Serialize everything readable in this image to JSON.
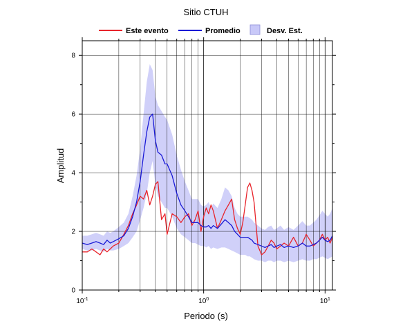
{
  "chart_data": {
    "type": "line",
    "title": "Sitio CTUH",
    "xlabel": "Periodo (s)",
    "ylabel": "Amplitud",
    "x_scale": "log",
    "xlim": [
      0.1,
      11.5
    ],
    "ylim": [
      0,
      8.5
    ],
    "grid": true,
    "legend_position": "top",
    "x_ticks": [
      {
        "value": 0.1,
        "base": "10",
        "exp": "-1"
      },
      {
        "value": 1,
        "base": "10",
        "exp": "0"
      },
      {
        "value": 10,
        "base": "10",
        "exp": "1"
      }
    ],
    "y_ticks": [
      0,
      2,
      4,
      6,
      8
    ],
    "series": [
      {
        "name": "Este evento",
        "color": "#e8242b",
        "style": "line",
        "x": [
          0.1,
          0.11,
          0.12,
          0.13,
          0.14,
          0.15,
          0.16,
          0.17,
          0.18,
          0.2,
          0.22,
          0.24,
          0.26,
          0.28,
          0.3,
          0.32,
          0.34,
          0.36,
          0.38,
          0.4,
          0.42,
          0.45,
          0.48,
          0.5,
          0.55,
          0.6,
          0.65,
          0.7,
          0.75,
          0.8,
          0.85,
          0.9,
          0.95,
          1.0,
          1.05,
          1.1,
          1.15,
          1.2,
          1.3,
          1.4,
          1.5,
          1.6,
          1.7,
          1.8,
          1.9,
          2.0,
          2.1,
          2.2,
          2.3,
          2.4,
          2.5,
          2.6,
          2.8,
          3.0,
          3.2,
          3.4,
          3.6,
          3.8,
          4.0,
          4.3,
          4.6,
          5.0,
          5.5,
          6.0,
          6.5,
          7.0,
          7.5,
          8.0,
          8.5,
          9.0,
          9.5,
          10.0,
          10.5,
          11.0,
          11.5
        ],
        "y": [
          1.3,
          1.3,
          1.4,
          1.3,
          1.2,
          1.4,
          1.3,
          1.4,
          1.5,
          1.6,
          1.9,
          2.2,
          2.6,
          2.9,
          3.2,
          3.1,
          3.4,
          2.9,
          3.2,
          3.6,
          3.7,
          2.4,
          2.6,
          1.9,
          2.6,
          2.5,
          2.3,
          2.5,
          2.6,
          2.2,
          2.4,
          2.7,
          2.0,
          2.5,
          2.8,
          2.6,
          2.9,
          2.7,
          2.1,
          2.4,
          2.7,
          2.9,
          3.1,
          2.4,
          2.1,
          1.9,
          2.3,
          2.9,
          3.5,
          3.65,
          3.4,
          3.0,
          1.5,
          1.2,
          1.3,
          1.5,
          1.7,
          1.6,
          1.4,
          1.5,
          1.6,
          1.5,
          1.8,
          1.5,
          1.6,
          1.9,
          1.7,
          1.5,
          1.6,
          1.7,
          1.9,
          1.7,
          1.8,
          1.6,
          1.8
        ]
      },
      {
        "name": "Promedio",
        "color": "#1a1ad6",
        "style": "line",
        "x": [
          0.1,
          0.11,
          0.12,
          0.13,
          0.14,
          0.15,
          0.16,
          0.17,
          0.18,
          0.2,
          0.22,
          0.24,
          0.26,
          0.28,
          0.3,
          0.32,
          0.34,
          0.36,
          0.38,
          0.4,
          0.42,
          0.45,
          0.48,
          0.5,
          0.55,
          0.6,
          0.65,
          0.7,
          0.75,
          0.8,
          0.85,
          0.9,
          0.95,
          1.0,
          1.05,
          1.1,
          1.15,
          1.2,
          1.3,
          1.4,
          1.5,
          1.6,
          1.7,
          1.8,
          1.9,
          2.0,
          2.1,
          2.2,
          2.3,
          2.4,
          2.5,
          2.6,
          2.8,
          3.0,
          3.2,
          3.4,
          3.6,
          3.8,
          4.0,
          4.3,
          4.6,
          5.0,
          5.5,
          6.0,
          6.5,
          7.0,
          7.5,
          8.0,
          8.5,
          9.0,
          9.5,
          10.0,
          10.5,
          11.0,
          11.5
        ],
        "y": [
          1.6,
          1.55,
          1.6,
          1.65,
          1.6,
          1.55,
          1.7,
          1.6,
          1.65,
          1.75,
          1.85,
          2.1,
          2.5,
          3.0,
          3.7,
          4.6,
          5.4,
          5.9,
          6.0,
          5.1,
          4.7,
          4.6,
          4.3,
          4.3,
          3.9,
          3.3,
          2.9,
          2.7,
          2.5,
          2.3,
          2.3,
          2.3,
          2.2,
          2.15,
          2.15,
          2.2,
          2.1,
          2.2,
          2.1,
          2.25,
          2.4,
          2.3,
          2.2,
          2.0,
          1.9,
          1.8,
          1.8,
          1.8,
          1.8,
          1.75,
          1.7,
          1.6,
          1.55,
          1.5,
          1.45,
          1.5,
          1.55,
          1.45,
          1.5,
          1.55,
          1.45,
          1.5,
          1.45,
          1.5,
          1.6,
          1.5,
          1.5,
          1.55,
          1.6,
          1.7,
          1.8,
          1.7,
          1.65,
          1.7,
          1.85
        ]
      },
      {
        "name": "Desv. Est.",
        "color": "#c8c8f8",
        "style": "band",
        "x": [
          0.1,
          0.11,
          0.12,
          0.13,
          0.14,
          0.15,
          0.16,
          0.17,
          0.18,
          0.2,
          0.22,
          0.24,
          0.26,
          0.28,
          0.3,
          0.32,
          0.34,
          0.36,
          0.38,
          0.4,
          0.42,
          0.45,
          0.48,
          0.5,
          0.55,
          0.6,
          0.65,
          0.7,
          0.75,
          0.8,
          0.85,
          0.9,
          0.95,
          1.0,
          1.05,
          1.1,
          1.15,
          1.2,
          1.3,
          1.4,
          1.5,
          1.6,
          1.7,
          1.8,
          1.9,
          2.0,
          2.1,
          2.2,
          2.3,
          2.4,
          2.5,
          2.6,
          2.8,
          3.0,
          3.2,
          3.4,
          3.6,
          3.8,
          4.0,
          4.3,
          4.6,
          5.0,
          5.5,
          6.0,
          6.5,
          7.0,
          7.5,
          8.0,
          8.5,
          9.0,
          9.5,
          10.0,
          10.5,
          11.0,
          11.5
        ],
        "lower": [
          1.4,
          1.35,
          1.35,
          1.4,
          1.35,
          1.3,
          1.4,
          1.35,
          1.35,
          1.4,
          1.5,
          1.6,
          1.8,
          2.0,
          2.4,
          2.8,
          3.3,
          4.0,
          4.4,
          3.6,
          3.2,
          3.0,
          2.8,
          2.8,
          2.5,
          2.1,
          1.9,
          1.8,
          1.7,
          1.6,
          1.6,
          1.55,
          1.5,
          1.5,
          1.45,
          1.5,
          1.4,
          1.45,
          1.4,
          1.45,
          1.45,
          1.4,
          1.35,
          1.3,
          1.25,
          1.2,
          1.2,
          1.2,
          1.15,
          1.15,
          1.1,
          1.05,
          1.0,
          1.0,
          0.95,
          1.0,
          1.0,
          0.95,
          1.0,
          1.0,
          0.95,
          1.0,
          0.95,
          1.0,
          1.05,
          1.0,
          1.0,
          1.05,
          1.05,
          1.1,
          1.15,
          1.1,
          1.05,
          1.1,
          1.15
        ],
        "upper": [
          1.85,
          1.85,
          1.9,
          1.95,
          1.9,
          1.85,
          2.0,
          1.95,
          2.0,
          2.15,
          2.3,
          2.6,
          3.2,
          3.9,
          4.8,
          6.0,
          7.1,
          7.7,
          7.5,
          6.6,
          6.3,
          6.1,
          5.9,
          5.8,
          5.3,
          4.6,
          4.1,
          3.7,
          3.4,
          3.1,
          3.1,
          3.1,
          2.9,
          2.85,
          2.9,
          3.0,
          2.8,
          2.95,
          2.8,
          3.1,
          3.5,
          3.4,
          3.2,
          2.8,
          2.6,
          2.5,
          2.5,
          2.5,
          2.5,
          2.45,
          2.4,
          2.3,
          2.2,
          2.1,
          2.05,
          2.15,
          2.2,
          2.05,
          2.1,
          2.2,
          2.05,
          2.15,
          2.05,
          2.2,
          2.35,
          2.2,
          2.2,
          2.3,
          2.4,
          2.55,
          2.7,
          2.6,
          2.5,
          2.6,
          2.8
        ]
      }
    ]
  }
}
